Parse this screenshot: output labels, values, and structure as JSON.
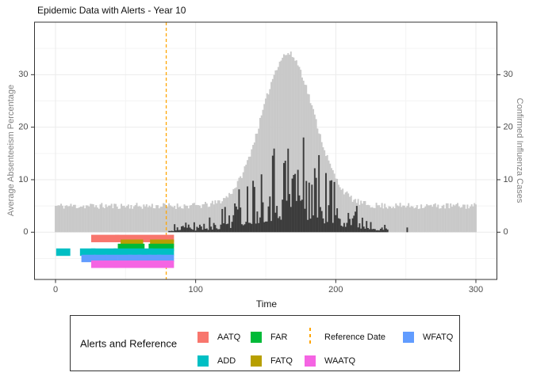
{
  "title": "Epidemic Data with Alerts - Year 10",
  "axes": {
    "x": {
      "label": "Time",
      "tick_labels": [
        "0",
        "100",
        "200",
        "300"
      ],
      "ticks": [
        0,
        100,
        200,
        300
      ],
      "minor_ticks": [
        50,
        150,
        250
      ],
      "domain": [
        -15,
        315
      ]
    },
    "y_left": {
      "label": "Average Absenteeism Percentage",
      "tick_labels": [
        "0",
        "10",
        "20",
        "30"
      ],
      "ticks": [
        0,
        10,
        20,
        30
      ],
      "minor_ticks": [
        -5,
        5,
        15,
        25,
        35
      ],
      "domain": [
        -9,
        40
      ]
    },
    "y_right": {
      "label": "Confirmed Influenza Cases",
      "tick_labels": [
        "0",
        "10",
        "20",
        "30"
      ],
      "ticks": [
        0,
        10,
        20,
        30
      ]
    }
  },
  "colors": {
    "gray_area": "#C9C9C9",
    "influenza_bars": "#3C3C3C",
    "reference_line": "#FFA500",
    "grid_major": "#EBEBEB",
    "grid_minor": "#F4F4F4",
    "panel_border": "#333333",
    "tick_label": "#4D4D4D",
    "aatq": "#F8766D",
    "add": "#00BFC4",
    "far": "#00BA38",
    "fatq": "#B79F00",
    "waatq": "#F564E3",
    "wfatq": "#619CFF"
  },
  "chart_data": {
    "type": "bar",
    "title": "Epidemic Data with Alerts - Year 10",
    "xlabel": "Time",
    "ylabel_left": "Average Absenteeism Percentage",
    "ylabel_right": "Confirmed Influenza Cases",
    "xlim": [
      -15,
      315
    ],
    "ylim": [
      -9,
      40
    ],
    "grid": true,
    "seed": 11,
    "reference_date": 79,
    "series": [
      {
        "name": "Average Absenteeism Percentage",
        "role": "gray-area",
        "color": "#C9C9C9",
        "model": {
          "baseline": 5,
          "baseline_noise": 1.2,
          "peak_amplitude": 29,
          "peak_center": 166,
          "sigma": 18.5,
          "t_range": [
            0,
            300
          ]
        },
        "envelope_samples": {
          "t": [
            0,
            20,
            40,
            60,
            80,
            100,
            120,
            140,
            160,
            166,
            180,
            200,
            220,
            240,
            260,
            280,
            300
          ],
          "v": [
            5,
            5,
            5,
            5,
            5,
            5.1,
            6.3,
            15.8,
            32.5,
            34,
            26.8,
            10.4,
            5.4,
            5,
            5,
            5,
            5
          ]
        }
      },
      {
        "name": "Confirmed Influenza Cases",
        "role": "dark-spikes",
        "color": "#3C3C3C",
        "model": {
          "base": 1.5,
          "peak_amplitude": 18.5,
          "peak_center": 168,
          "sigma": 27,
          "t_range": [
            81,
            240
          ],
          "spike_exponent": 1.7,
          "spike_floor": 0.12
        },
        "envelope_samples": {
          "t": [
            80,
            100,
            120,
            140,
            160,
            168,
            180,
            200,
            220,
            240
          ],
          "v": [
            1.6,
            2.3,
            5.3,
            12.3,
            19.2,
            20,
            18.3,
            10.7,
            4.4,
            0
          ]
        },
        "outliers": [
          {
            "t": 251,
            "v": 0.9
          }
        ]
      }
    ],
    "alerts": [
      {
        "name": "AATQ",
        "color": "#F8766D",
        "y": -1.2,
        "segments": [
          [
            28,
            43
          ],
          [
            45,
            82
          ]
        ]
      },
      {
        "name": "FATQ",
        "color": "#B79F00",
        "y": -2.1,
        "segments": [
          [
            49,
            60
          ],
          [
            70,
            82
          ]
        ]
      },
      {
        "name": "FAR",
        "color": "#00BA38",
        "y": -2.9,
        "segments": [
          [
            47,
            61
          ],
          [
            69,
            82
          ]
        ]
      },
      {
        "name": "ADD",
        "color": "#00BFC4",
        "y": -3.8,
        "segments": [
          [
            3,
            8
          ],
          [
            20,
            26
          ],
          [
            28,
            41
          ],
          [
            44,
            67
          ],
          [
            69,
            82
          ]
        ]
      },
      {
        "name": "WFATQ",
        "color": "#619CFF",
        "y": -5.0,
        "segments": [
          [
            21,
            26
          ],
          [
            30,
            34
          ],
          [
            38,
            42
          ],
          [
            47,
            52
          ],
          [
            54,
            59
          ],
          [
            61,
            66
          ],
          [
            68,
            73
          ],
          [
            75,
            82
          ]
        ]
      },
      {
        "name": "WAATQ",
        "color": "#F564E3",
        "y": -6.1,
        "segments": [
          [
            28,
            34
          ],
          [
            37,
            42
          ],
          [
            44,
            82
          ]
        ]
      }
    ]
  },
  "legend": {
    "title": "Alerts and Reference",
    "items": [
      {
        "label": "AATQ",
        "type": "square",
        "color": "#F8766D",
        "col": 0,
        "row": 0
      },
      {
        "label": "ADD",
        "type": "square",
        "color": "#00BFC4",
        "col": 0,
        "row": 1
      },
      {
        "label": "FAR",
        "type": "square",
        "color": "#00BA38",
        "col": 1,
        "row": 0
      },
      {
        "label": "FATQ",
        "type": "square",
        "color": "#B79F00",
        "col": 1,
        "row": 1
      },
      {
        "label": "Reference Date",
        "type": "vline",
        "color": "#FFA500",
        "col": 2,
        "row": 0
      },
      {
        "label": "WAATQ",
        "type": "square",
        "color": "#F564E3",
        "col": 2,
        "row": 1
      },
      {
        "label": "WFATQ",
        "type": "square",
        "color": "#619CFF",
        "col": 3,
        "row": 0
      }
    ]
  }
}
